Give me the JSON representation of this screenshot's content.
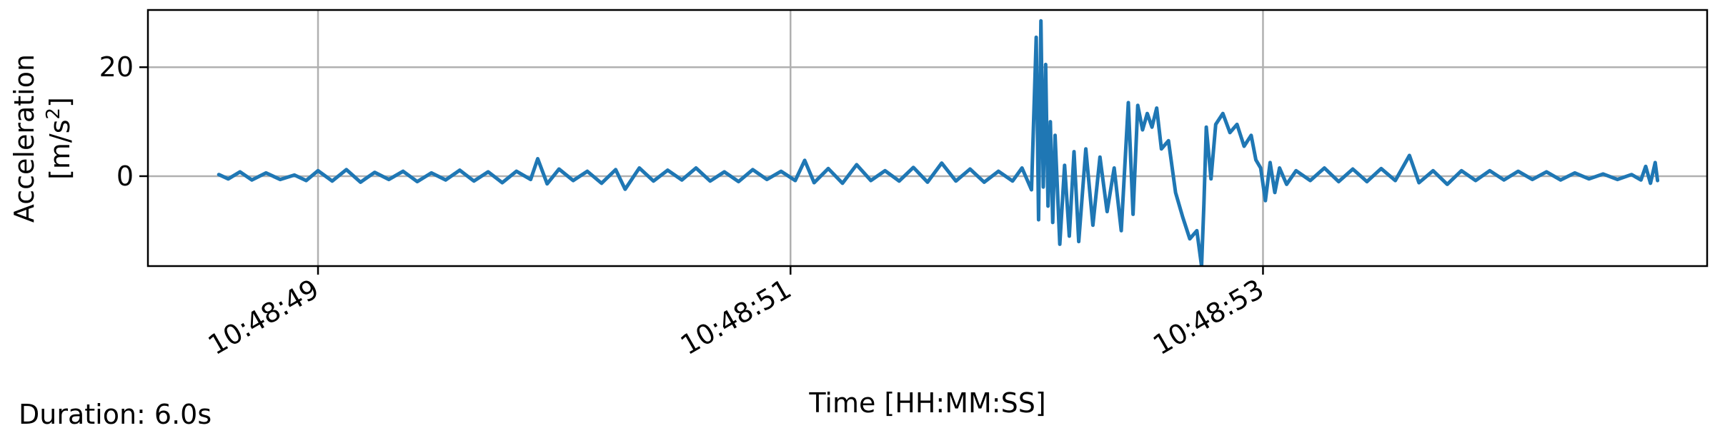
{
  "chart_data": {
    "type": "line",
    "title": "",
    "xlabel": "Time [HH:MM:SS]",
    "ylabel_line1": "Acceleration",
    "ylabel_line2_prefix": "[m/s",
    "ylabel_line2_sup": "2",
    "ylabel_line2_suffix": "]",
    "duration_label": "Duration: 6.0s",
    "xlim_s": [
      -0.72,
      5.88
    ],
    "ylim": [
      -16.5,
      30.5
    ],
    "x_ticks": [
      {
        "t": 0,
        "label": "10:48:49"
      },
      {
        "t": 2,
        "label": "10:48:51"
      },
      {
        "t": 4,
        "label": "10:48:53"
      }
    ],
    "y_ticks": [
      {
        "v": 0,
        "label": "0"
      },
      {
        "v": 20,
        "label": "20"
      }
    ],
    "grid": true,
    "legend": "none",
    "series": [
      {
        "color": "#1f77b4",
        "points": [
          [
            -0.42,
            0.3
          ],
          [
            -0.38,
            -0.5
          ],
          [
            -0.33,
            0.8
          ],
          [
            -0.28,
            -0.7
          ],
          [
            -0.22,
            0.6
          ],
          [
            -0.16,
            -0.6
          ],
          [
            -0.1,
            0.2
          ],
          [
            -0.05,
            -0.8
          ],
          [
            0.0,
            1.0
          ],
          [
            0.06,
            -0.9
          ],
          [
            0.12,
            1.2
          ],
          [
            0.18,
            -1.1
          ],
          [
            0.24,
            0.7
          ],
          [
            0.3,
            -0.6
          ],
          [
            0.36,
            0.9
          ],
          [
            0.42,
            -1.0
          ],
          [
            0.48,
            0.6
          ],
          [
            0.54,
            -0.7
          ],
          [
            0.6,
            1.1
          ],
          [
            0.66,
            -0.9
          ],
          [
            0.72,
            0.8
          ],
          [
            0.78,
            -1.2
          ],
          [
            0.84,
            0.9
          ],
          [
            0.9,
            -0.6
          ],
          [
            0.93,
            3.2
          ],
          [
            0.97,
            -1.4
          ],
          [
            1.02,
            1.3
          ],
          [
            1.08,
            -0.8
          ],
          [
            1.14,
            0.9
          ],
          [
            1.2,
            -1.3
          ],
          [
            1.26,
            1.2
          ],
          [
            1.3,
            -2.4
          ],
          [
            1.36,
            1.5
          ],
          [
            1.42,
            -0.9
          ],
          [
            1.48,
            1.1
          ],
          [
            1.54,
            -0.7
          ],
          [
            1.6,
            1.5
          ],
          [
            1.66,
            -0.9
          ],
          [
            1.72,
            0.8
          ],
          [
            1.78,
            -1.0
          ],
          [
            1.84,
            1.2
          ],
          [
            1.9,
            -0.6
          ],
          [
            1.96,
            0.9
          ],
          [
            2.02,
            -0.8
          ],
          [
            2.06,
            2.9
          ],
          [
            2.1,
            -1.2
          ],
          [
            2.16,
            1.4
          ],
          [
            2.22,
            -1.3
          ],
          [
            2.28,
            2.1
          ],
          [
            2.34,
            -0.8
          ],
          [
            2.4,
            1.0
          ],
          [
            2.46,
            -0.9
          ],
          [
            2.52,
            1.6
          ],
          [
            2.58,
            -1.1
          ],
          [
            2.64,
            2.4
          ],
          [
            2.7,
            -0.9
          ],
          [
            2.76,
            1.3
          ],
          [
            2.82,
            -1.1
          ],
          [
            2.88,
            0.9
          ],
          [
            2.94,
            -0.9
          ],
          [
            2.98,
            1.5
          ],
          [
            3.02,
            -2.5
          ],
          [
            3.04,
            25.5
          ],
          [
            3.05,
            -8.0
          ],
          [
            3.06,
            28.5
          ],
          [
            3.07,
            -2.0
          ],
          [
            3.08,
            20.5
          ],
          [
            3.09,
            -5.5
          ],
          [
            3.1,
            10.0
          ],
          [
            3.11,
            -8.5
          ],
          [
            3.12,
            7.5
          ],
          [
            3.14,
            -12.5
          ],
          [
            3.16,
            2.0
          ],
          [
            3.18,
            -11.0
          ],
          [
            3.2,
            4.5
          ],
          [
            3.22,
            -12.0
          ],
          [
            3.25,
            5.0
          ],
          [
            3.28,
            -9.0
          ],
          [
            3.31,
            3.5
          ],
          [
            3.34,
            -6.5
          ],
          [
            3.37,
            1.5
          ],
          [
            3.4,
            -10.0
          ],
          [
            3.43,
            13.5
          ],
          [
            3.45,
            -7.0
          ],
          [
            3.47,
            13.0
          ],
          [
            3.49,
            8.5
          ],
          [
            3.51,
            11.5
          ],
          [
            3.53,
            9.0
          ],
          [
            3.55,
            12.5
          ],
          [
            3.57,
            5.0
          ],
          [
            3.6,
            6.5
          ],
          [
            3.63,
            -3.0
          ],
          [
            3.66,
            -7.5
          ],
          [
            3.69,
            -11.5
          ],
          [
            3.72,
            -10.0
          ],
          [
            3.74,
            -16.5
          ],
          [
            3.75,
            -5.0
          ],
          [
            3.76,
            9.0
          ],
          [
            3.78,
            -0.5
          ],
          [
            3.8,
            9.5
          ],
          [
            3.83,
            11.5
          ],
          [
            3.86,
            8.0
          ],
          [
            3.89,
            9.5
          ],
          [
            3.92,
            5.5
          ],
          [
            3.95,
            7.5
          ],
          [
            3.97,
            3.0
          ],
          [
            3.99,
            1.5
          ],
          [
            4.01,
            -4.5
          ],
          [
            4.03,
            2.5
          ],
          [
            4.05,
            -3.0
          ],
          [
            4.07,
            1.5
          ],
          [
            4.1,
            -1.5
          ],
          [
            4.14,
            1.0
          ],
          [
            4.2,
            -0.8
          ],
          [
            4.26,
            1.5
          ],
          [
            4.32,
            -1.0
          ],
          [
            4.38,
            1.3
          ],
          [
            4.44,
            -1.0
          ],
          [
            4.5,
            1.4
          ],
          [
            4.56,
            -0.8
          ],
          [
            4.62,
            3.8
          ],
          [
            4.66,
            -1.2
          ],
          [
            4.72,
            1.0
          ],
          [
            4.78,
            -1.5
          ],
          [
            4.84,
            1.0
          ],
          [
            4.9,
            -0.8
          ],
          [
            4.96,
            1.0
          ],
          [
            5.02,
            -0.7
          ],
          [
            5.08,
            0.9
          ],
          [
            5.14,
            -0.6
          ],
          [
            5.2,
            0.8
          ],
          [
            5.26,
            -0.7
          ],
          [
            5.32,
            0.6
          ],
          [
            5.38,
            -0.5
          ],
          [
            5.44,
            0.4
          ],
          [
            5.5,
            -0.6
          ],
          [
            5.56,
            0.3
          ],
          [
            5.6,
            -0.7
          ],
          [
            5.62,
            1.8
          ],
          [
            5.64,
            -1.3
          ],
          [
            5.66,
            2.5
          ],
          [
            5.67,
            -0.8
          ]
        ]
      }
    ]
  }
}
